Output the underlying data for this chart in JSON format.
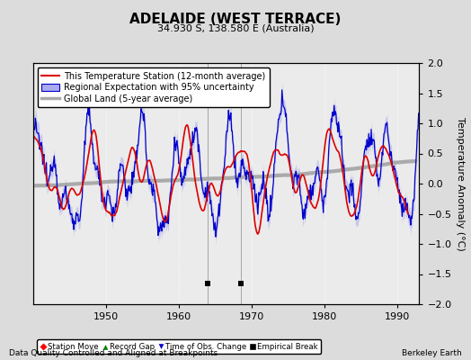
{
  "title": "ADELAIDE (WEST TERRACE)",
  "subtitle": "34.930 S, 138.580 E (Australia)",
  "footer_left": "Data Quality Controlled and Aligned at Breakpoints",
  "footer_right": "Berkeley Earth",
  "ylabel": "Temperature Anomaly (°C)",
  "ylim": [
    -2,
    2
  ],
  "xlim": [
    1940,
    1993
  ],
  "yticks": [
    -2,
    -1.5,
    -1,
    -0.5,
    0,
    0.5,
    1,
    1.5,
    2
  ],
  "xticks": [
    1950,
    1960,
    1970,
    1980,
    1990
  ],
  "legend_entries": [
    "This Temperature Station (12-month average)",
    "Regional Expectation with 95% uncertainty",
    "Global Land (5-year average)"
  ],
  "empirical_breaks": [
    1964.0,
    1968.5
  ],
  "bg_color": "#dcdcdc",
  "plot_bg_color": "#ebebeb",
  "red_color": "#dd0000",
  "blue_color": "#0000cc",
  "blue_fill_color": "#aaaaee",
  "gray_color": "#aaaaaa",
  "grid_color": "#ffffff",
  "title_fontsize": 11,
  "subtitle_fontsize": 8,
  "ylabel_fontsize": 8,
  "tick_fontsize": 8,
  "legend_fontsize": 7,
  "footer_fontsize": 6.5
}
